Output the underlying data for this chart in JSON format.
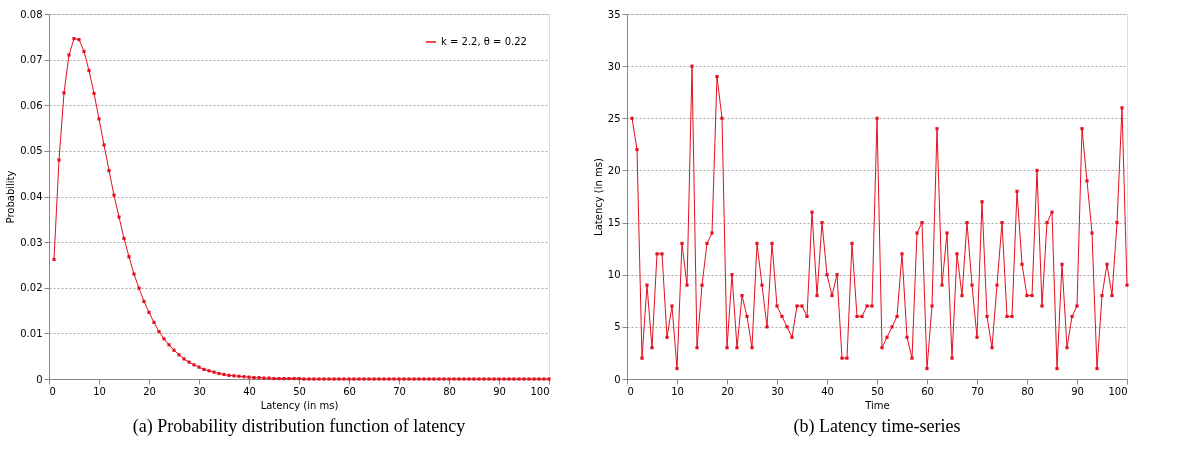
{
  "chart_data": [
    {
      "type": "line",
      "title": "(a) Probability distribution function of latency",
      "xlabel": "Latency (in ms)",
      "ylabel": "Probability",
      "x": [
        1,
        2,
        3,
        4,
        5,
        6,
        7,
        8,
        9,
        10,
        11,
        12,
        13,
        14,
        15,
        16,
        17,
        18,
        19,
        20,
        21,
        22,
        23,
        24,
        25,
        26,
        27,
        28,
        29,
        30,
        31,
        32,
        33,
        34,
        35,
        36,
        37,
        38,
        39,
        40,
        41,
        42,
        43,
        44,
        45,
        46,
        47,
        48,
        49,
        50,
        51,
        52,
        53,
        54,
        55,
        56,
        57,
        58,
        59,
        60,
        61,
        62,
        63,
        64,
        65,
        66,
        67,
        68,
        69,
        70,
        71,
        72,
        73,
        74,
        75,
        76,
        77,
        78,
        79,
        80,
        81,
        82,
        83,
        84,
        85,
        86,
        87,
        88,
        89,
        90,
        91,
        92,
        93,
        94,
        95,
        96,
        97,
        98,
        99,
        100
      ],
      "series": [
        {
          "name": "k = 2.2, θ = 0.22",
          "color": "#e3101e",
          "values": [
            0.0262,
            0.048,
            0.0627,
            0.071,
            0.0746,
            0.0744,
            0.0718,
            0.0676,
            0.0626,
            0.057,
            0.0513,
            0.0457,
            0.0403,
            0.0355,
            0.0308,
            0.0268,
            0.023,
            0.0199,
            0.017,
            0.0146,
            0.0124,
            0.0104,
            0.0088,
            0.0075,
            0.0063,
            0.0053,
            0.0044,
            0.0037,
            0.0031,
            0.0026,
            0.0021,
            0.0018,
            0.0015,
            0.0012,
            0.001,
            0.0008,
            0.0007,
            0.0006,
            0.0005,
            0.0004,
            0.0003,
            0.0003,
            0.0002,
            0.0002,
            0.0001,
            0.0001,
            0.0001,
            0.0001,
            0.0001,
            0.0001,
            0,
            0,
            0,
            0,
            0,
            0,
            0,
            0,
            0,
            0,
            0,
            0,
            0,
            0,
            0,
            0,
            0,
            0,
            0,
            0,
            0,
            0,
            0,
            0,
            0,
            0,
            0,
            0,
            0,
            0,
            0,
            0,
            0,
            0,
            0,
            0,
            0,
            0,
            0,
            0,
            0,
            0,
            0,
            0,
            0,
            0,
            0,
            0,
            0,
            0
          ]
        }
      ],
      "xlim": [
        0,
        100
      ],
      "xticks": [
        0,
        10,
        20,
        30,
        40,
        50,
        60,
        70,
        80,
        90,
        100
      ],
      "ylim": [
        0,
        0.08
      ],
      "yticks": [
        0,
        0.01,
        0.02,
        0.03,
        0.04,
        0.05,
        0.06,
        0.07,
        0.08
      ],
      "grid": "y",
      "legend": "top right",
      "marker": "square",
      "line_style": "solid"
    },
    {
      "type": "line",
      "title": "(b) Latency time-series",
      "xlabel": "Time",
      "ylabel": "Latency (in ms)",
      "x": [
        1,
        2,
        3,
        4,
        5,
        6,
        7,
        8,
        9,
        10,
        11,
        12,
        13,
        14,
        15,
        16,
        17,
        18,
        19,
        20,
        21,
        22,
        23,
        24,
        25,
        26,
        27,
        28,
        29,
        30,
        31,
        32,
        33,
        34,
        35,
        36,
        37,
        38,
        39,
        40,
        41,
        42,
        43,
        44,
        45,
        46,
        47,
        48,
        49,
        50,
        51,
        52,
        53,
        54,
        55,
        56,
        57,
        58,
        59,
        60,
        61,
        62,
        63,
        64,
        65,
        66,
        67,
        68,
        69,
        70,
        71,
        72,
        73,
        74,
        75,
        76,
        77,
        78,
        79,
        80,
        81,
        82,
        83,
        84,
        85,
        86,
        87,
        88,
        89,
        90,
        91,
        92,
        93,
        94,
        95,
        96,
        97,
        98,
        99,
        100
      ],
      "series": [
        {
          "color": "#e3101e",
          "values": [
            25,
            22,
            2,
            9,
            3,
            12,
            12,
            4,
            7,
            1,
            13,
            9,
            30,
            3,
            9,
            13,
            14,
            29,
            25,
            3,
            10,
            3,
            8,
            6,
            3,
            13,
            9,
            5,
            13,
            7,
            6,
            5,
            4,
            7,
            7,
            6,
            16,
            8,
            15,
            10,
            8,
            10,
            2,
            2,
            13,
            6,
            6,
            7,
            7,
            25,
            3,
            4,
            5,
            6,
            12,
            4,
            2,
            14,
            15,
            1,
            7,
            24,
            9,
            14,
            2,
            12,
            8,
            15,
            9,
            4,
            17,
            6,
            3,
            9,
            15,
            6,
            6,
            18,
            11,
            8,
            8,
            20,
            7,
            15,
            16,
            1,
            11,
            3,
            6,
            7,
            24,
            19,
            14,
            1,
            8,
            11,
            8,
            15,
            26,
            9
          ]
        }
      ],
      "xlim": [
        0,
        100
      ],
      "xticks": [
        0,
        10,
        20,
        30,
        40,
        50,
        60,
        70,
        80,
        90,
        100
      ],
      "ylim": [
        0,
        35
      ],
      "yticks": [
        0,
        5,
        10,
        15,
        20,
        25,
        30,
        35
      ],
      "grid": "y",
      "marker": "square",
      "line_style": "solid"
    }
  ]
}
